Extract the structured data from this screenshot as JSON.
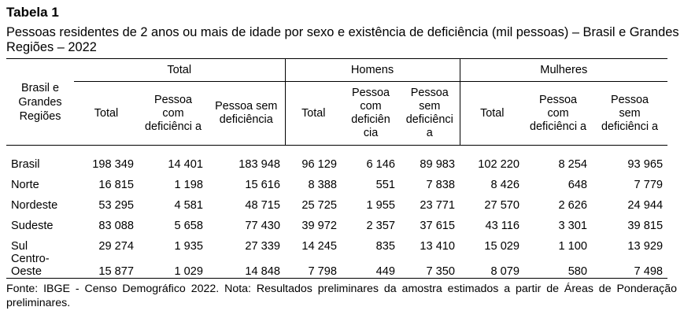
{
  "title": "Tabela 1",
  "subtitle": "Pessoas residentes de 2 anos ou mais de idade por sexo e existência de deficiência (mil pessoas) – Brasil e Grandes Regiões – 2022",
  "table": {
    "region_header": "Brasil e Grandes Regiões",
    "groups": [
      "Total",
      "Homens",
      "Mulheres"
    ],
    "subheaders": {
      "total": {
        "col1": "Total",
        "col2": "Pessoa com deficiênci a",
        "col3": "Pessoa sem deficiência"
      },
      "homens": {
        "col1": "Total",
        "col2": "Pessoa com deficiên cia",
        "col3": "Pessoa sem deficiênci a"
      },
      "mulheres": {
        "col1": "Total",
        "col2": "Pessoa com deficiênci a",
        "col3": "Pessoa sem deficiênci a"
      }
    },
    "rows": [
      {
        "region": "Brasil",
        "values": [
          "198 349",
          "14 401",
          "183 948",
          "96 129",
          "6 146",
          "89 983",
          "102 220",
          "8 254",
          "93 965"
        ]
      },
      {
        "region": "Norte",
        "values": [
          "16 815",
          "1 198",
          "15 616",
          "8 388",
          "551",
          "7 838",
          "8 426",
          "648",
          "7 779"
        ]
      },
      {
        "region": "Nordeste",
        "values": [
          "53 295",
          "4 581",
          "48 715",
          "25 725",
          "1 955",
          "23 771",
          "27 570",
          "2 626",
          "24 944"
        ]
      },
      {
        "region": "Sudeste",
        "values": [
          "83 088",
          "5 658",
          "77 430",
          "39 972",
          "2 357",
          "37 615",
          "43 116",
          "3 301",
          "39 815"
        ]
      },
      {
        "region": "Sul",
        "values": [
          "29 274",
          "1 935",
          "27 339",
          "14 245",
          "835",
          "13 410",
          "15 029",
          "1 100",
          "13 929"
        ]
      },
      {
        "region": "Centro-Oeste",
        "values": [
          "15 877",
          "1 029",
          "14 848",
          "7 798",
          "449",
          "7 350",
          "8 079",
          "580",
          "7 498"
        ]
      }
    ]
  },
  "source": "Fonte: IBGE - Censo Demográfico 2022. Nota: Resultados preliminares da amostra estimados a partir de Áreas de Ponderação preliminares."
}
